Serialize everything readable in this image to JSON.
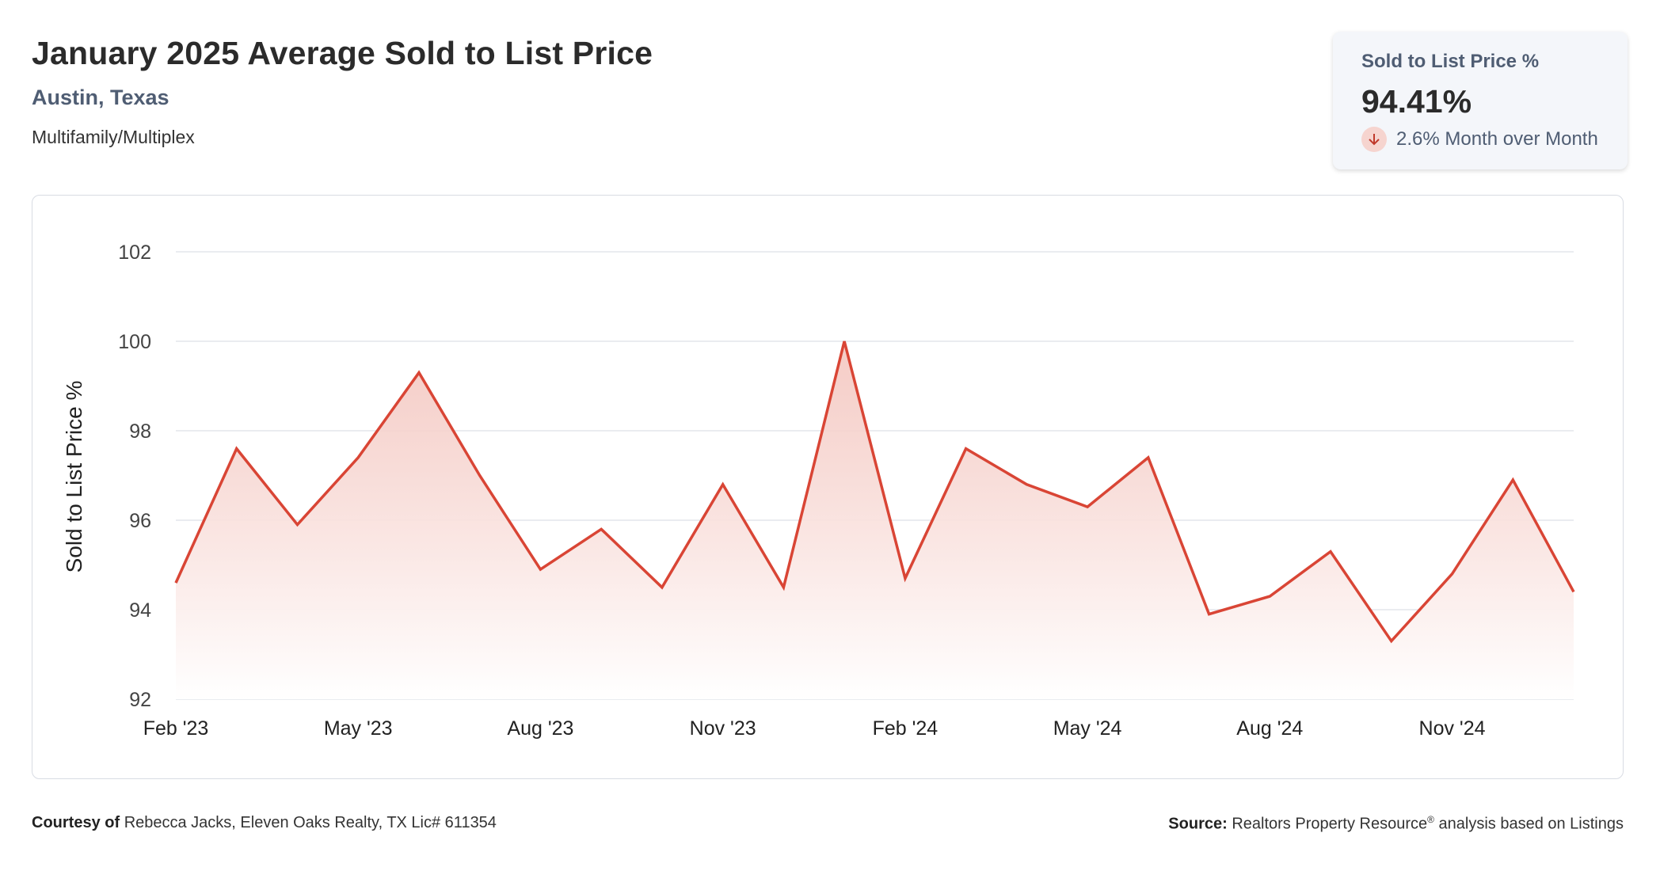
{
  "header": {
    "title": "January 2025 Average Sold to List Price",
    "location": "Austin, Texas",
    "category": "Multifamily/Multiplex"
  },
  "stat_card": {
    "label": "Sold to List Price %",
    "value": "94.41%",
    "change": "2.6% Month over Month",
    "direction_icon": "arrow-down-icon"
  },
  "footer": {
    "courtesy_label": "Courtesy of",
    "courtesy_text": "Rebecca Jacks, Eleven Oaks Realty, TX Lic# 611354",
    "source_label": "Source:",
    "source_text_a": "Realtors Property Resource",
    "source_sup": "®",
    "source_text_b": " analysis based on Listings"
  },
  "colors": {
    "line": "#d94535",
    "fill_top": "#f3c3bc",
    "grid": "#e3e6eb",
    "text": "#333333"
  },
  "chart_data": {
    "type": "area",
    "title": "",
    "ylabel": "Sold to List Price %",
    "xlabel": "",
    "ylim": [
      92,
      102
    ],
    "yticks": [
      92,
      94,
      96,
      98,
      100,
      102
    ],
    "x": [
      "Feb '23",
      "Mar '23",
      "Apr '23",
      "May '23",
      "Jun '23",
      "Jul '23",
      "Aug '23",
      "Sep '23",
      "Oct '23",
      "Nov '23",
      "Dec '23",
      "Jan '24",
      "Feb '24",
      "Mar '24",
      "Apr '24",
      "May '24",
      "Jun '24",
      "Jul '24",
      "Aug '24",
      "Sep '24",
      "Oct '24",
      "Nov '24",
      "Dec '24",
      "Jan '25"
    ],
    "xtick_labels": [
      "Feb '23",
      "May '23",
      "Aug '23",
      "Nov '23",
      "Feb '24",
      "May '24",
      "Aug '24",
      "Nov '24"
    ],
    "xtick_indices": [
      0,
      3,
      6,
      9,
      12,
      15,
      18,
      21
    ],
    "series": [
      {
        "values": [
          94.6,
          97.6,
          95.9,
          97.4,
          99.3,
          97.0,
          94.9,
          95.8,
          94.5,
          96.8,
          94.5,
          100.0,
          94.7,
          97.6,
          96.8,
          96.3,
          97.4,
          93.9,
          94.3,
          95.3,
          93.3,
          94.8,
          96.9,
          94.4
        ]
      }
    ],
    "grid": true,
    "legend": "none"
  }
}
